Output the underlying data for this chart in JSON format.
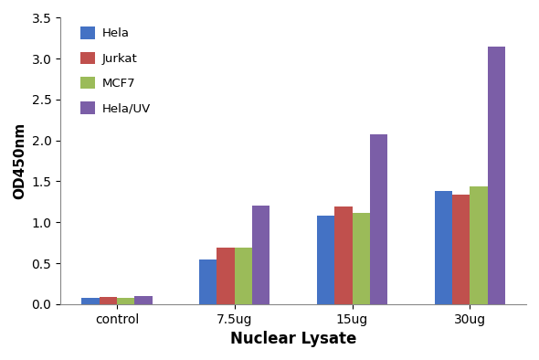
{
  "categories": [
    "control",
    "7.5ug",
    "15ug",
    "30ug"
  ],
  "series": {
    "Hela": [
      0.08,
      0.55,
      1.08,
      1.38
    ],
    "Jurkat": [
      0.09,
      0.69,
      1.19,
      1.34
    ],
    "MCF7": [
      0.08,
      0.69,
      1.12,
      1.44
    ],
    "Hela/UV": [
      0.1,
      1.2,
      2.07,
      3.15
    ]
  },
  "colors": {
    "Hela": "#4472C4",
    "Jurkat": "#C0504D",
    "MCF7": "#9BBB59",
    "Hela/UV": "#7B5EA7"
  },
  "xlabel": "Nuclear Lysate",
  "ylabel": "OD450nm",
  "ylim": [
    0,
    3.5
  ],
  "yticks": [
    0,
    0.5,
    1.0,
    1.5,
    2.0,
    2.5,
    3.0,
    3.5
  ],
  "bar_width": 0.15,
  "legend_order": [
    "Hela",
    "Jurkat",
    "MCF7",
    "Hela/UV"
  ],
  "background_color": "#ffffff",
  "plot_bg_color": "#ffffff"
}
